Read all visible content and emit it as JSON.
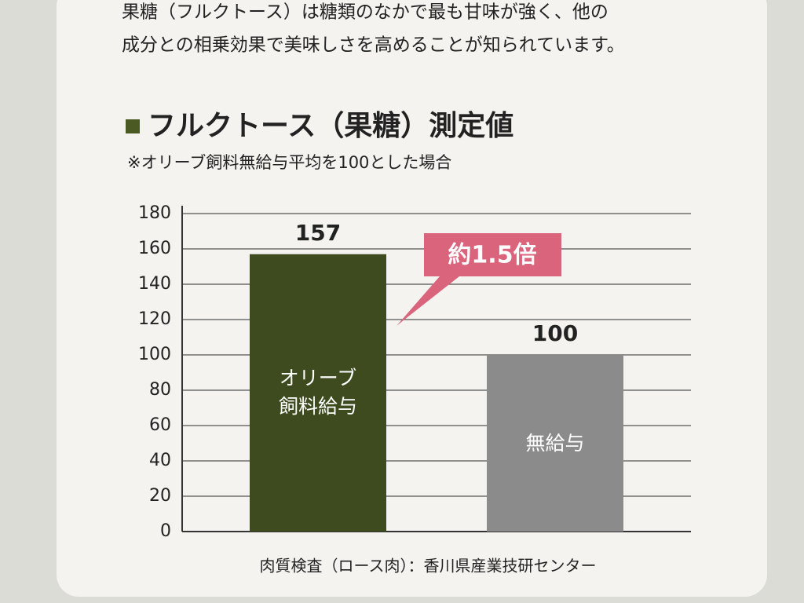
{
  "intro": [
    "果糖（フルクトース）は糖類のなかで最も甘味が強く、他の",
    "成分との相乗効果で美味しさを高めることが知られています。"
  ],
  "chart_data": {
    "type": "bar",
    "title": "フルクトース（果糖）測定値",
    "subtitle": "※オリーブ飼料無給与平均を100とした場合",
    "categories": [
      "オリーブ飼料給与",
      "無給与"
    ],
    "values": [
      157,
      100
    ],
    "colors": [
      "#3e4b1f",
      "#8b8b8b"
    ],
    "ylim": [
      0,
      180
    ],
    "yticks": [
      0,
      20,
      40,
      60,
      80,
      100,
      120,
      140,
      160,
      180
    ],
    "grid": true,
    "annotation": "約1.5倍",
    "source": "肉質検査（ロース肉）：香川県産業技研センター"
  }
}
